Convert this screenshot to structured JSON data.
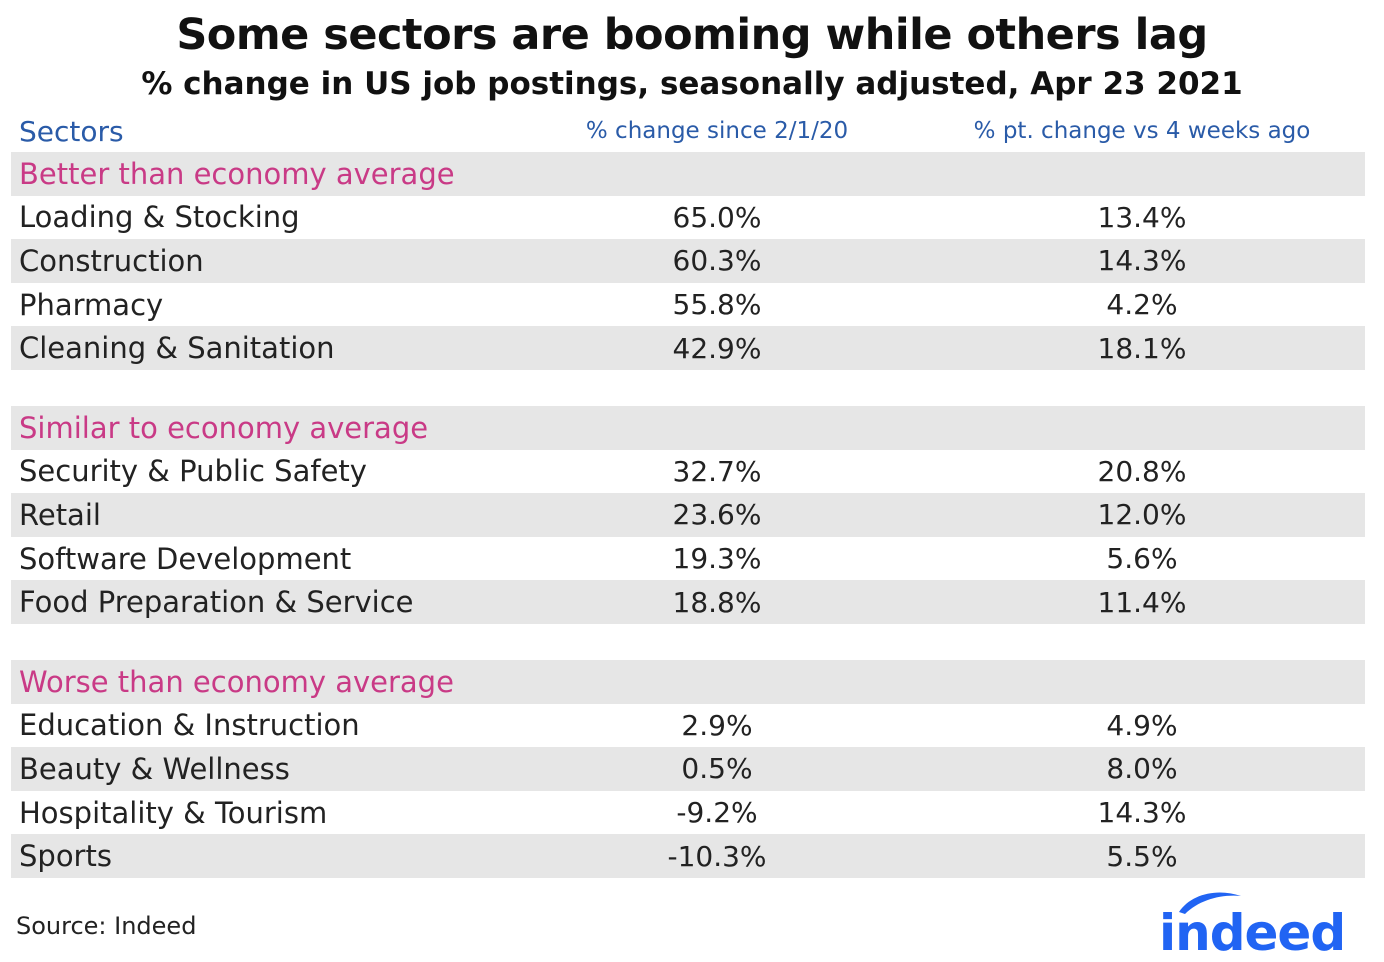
{
  "title": "Some sectors are booming while others lag",
  "subtitle": "% change in US job postings, seasonally adjusted, Apr 23 2021",
  "source": "Source: Indeed",
  "logo_text": "indeed",
  "colors": {
    "header": "#2a5ba8",
    "section": "#c93a86",
    "shade": "#e6e6e6",
    "logo": "#2164f3"
  },
  "chart_data": {
    "type": "table",
    "columns": [
      "Sectors",
      "% change since 2/1/20",
      "% pt. change vs 4 weeks ago"
    ],
    "groups": [
      {
        "name": "Better than economy average",
        "rows": [
          {
            "sector": "Loading & Stocking",
            "change_since": "65.0%",
            "change_4wk": "13.4%"
          },
          {
            "sector": "Construction",
            "change_since": "60.3%",
            "change_4wk": "14.3%"
          },
          {
            "sector": "Pharmacy",
            "change_since": "55.8%",
            "change_4wk": "4.2%"
          },
          {
            "sector": "Cleaning & Sanitation",
            "change_since": "42.9%",
            "change_4wk": "18.1%"
          }
        ]
      },
      {
        "name": "Similar to economy average",
        "rows": [
          {
            "sector": "Security & Public Safety",
            "change_since": "32.7%",
            "change_4wk": "20.8%"
          },
          {
            "sector": "Retail",
            "change_since": "23.6%",
            "change_4wk": "12.0%"
          },
          {
            "sector": "Software Development",
            "change_since": "19.3%",
            "change_4wk": "5.6%"
          },
          {
            "sector": "Food Preparation & Service",
            "change_since": "18.8%",
            "change_4wk": "11.4%"
          }
        ]
      },
      {
        "name": "Worse than economy average",
        "rows": [
          {
            "sector": "Education & Instruction",
            "change_since": "2.9%",
            "change_4wk": "4.9%"
          },
          {
            "sector": "Beauty & Wellness",
            "change_since": "0.5%",
            "change_4wk": "8.0%"
          },
          {
            "sector": "Hospitality & Tourism",
            "change_since": "-9.2%",
            "change_4wk": "14.3%"
          },
          {
            "sector": "Sports",
            "change_since": "-10.3%",
            "change_4wk": "5.5%"
          }
        ]
      }
    ]
  }
}
